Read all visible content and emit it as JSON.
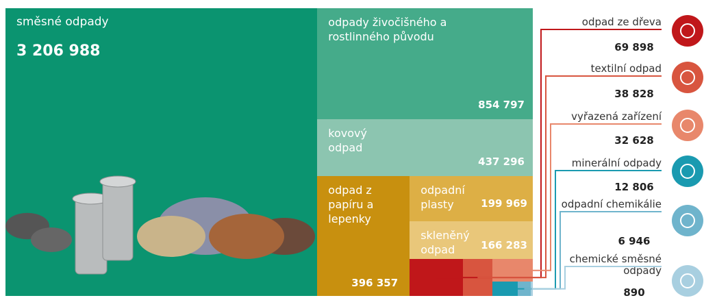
{
  "chart_data": {
    "type": "treemap",
    "categories": [
      "směsné odpady",
      "odpady živočišného a rostlinného původu",
      "kovový odpad",
      "odpad z papíru a lepenky",
      "odpadní plasty",
      "skleněný odpad",
      "odpad ze dřeva",
      "textilní odpad",
      "vyřazená zařízení",
      "minerální odpady",
      "odpadní chemikálie",
      "chemické směsné odpady"
    ],
    "values": [
      3206988,
      854797,
      437296,
      396357,
      199969,
      166283,
      69898,
      38828,
      32628,
      12806,
      6946,
      890
    ],
    "value_labels": [
      "3 206 988",
      "854 797",
      "437 296",
      "396 357",
      "199 969",
      "166 283",
      "69 898",
      "38 828",
      "32 628",
      "12 806",
      "6 946",
      "890"
    ],
    "colors": [
      "#0b9470",
      "#45ab8a",
      "#8cc5b0",
      "#c8900f",
      "#ddaf45",
      "#e9c77a",
      "#c0171a",
      "#d8553f",
      "#e8876b",
      "#1a9ab0",
      "#6fb4cc",
      "#a8cfe0"
    ]
  }
}
